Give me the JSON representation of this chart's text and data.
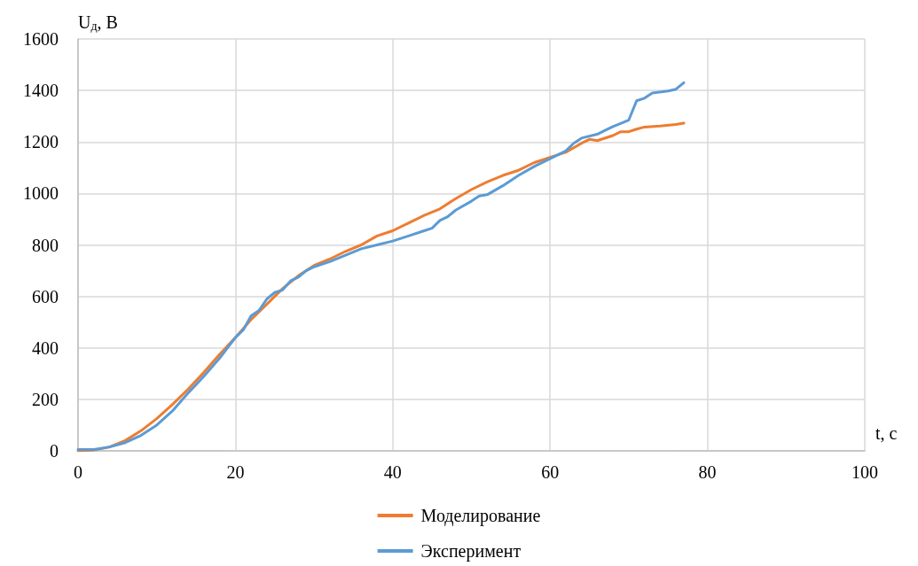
{
  "chart_data": {
    "type": "line",
    "xlabel": "t, с",
    "ylabel": "U$_{д}$, В",
    "x": [
      0,
      2,
      4,
      6,
      8,
      10,
      12,
      14,
      16,
      18,
      20,
      22,
      24,
      26,
      28,
      30,
      32,
      34,
      36,
      38,
      40,
      42,
      44,
      46,
      48,
      50,
      52,
      54,
      56,
      58,
      60,
      62,
      64,
      65,
      66,
      68,
      69,
      70,
      71,
      72,
      74,
      76,
      77
    ],
    "series": [
      {
        "name": "Моделирование",
        "color": "#ed7d31",
        "values": [
          0,
          3,
          15,
          40,
          78,
          125,
          180,
          240,
          305,
          375,
          440,
          510,
          570,
          630,
          680,
          720,
          745,
          775,
          800,
          835,
          855,
          885,
          915,
          940,
          980,
          1015,
          1045,
          1070,
          1090,
          1120,
          1140,
          1160,
          1195,
          1210,
          1205,
          1225,
          1240,
          1240,
          1250,
          1258,
          1262,
          1268,
          1273
        ]
      },
      {
        "name": "Эксперимент",
        "color": "#5b9bd5",
        "x": [
          0,
          2,
          4,
          6,
          8,
          10,
          12,
          14,
          16,
          18,
          20,
          21,
          22,
          23,
          24,
          25,
          26,
          27,
          28,
          29,
          30,
          32,
          34,
          36,
          38,
          40,
          42,
          44,
          45,
          46,
          47,
          48,
          50,
          51,
          52,
          54,
          56,
          58,
          60,
          62,
          63,
          64,
          66,
          67,
          68,
          70,
          71,
          72,
          73,
          75,
          76,
          77
        ],
        "values": [
          5,
          5,
          15,
          32,
          60,
          100,
          155,
          225,
          290,
          360,
          440,
          470,
          525,
          545,
          590,
          615,
          625,
          660,
          675,
          700,
          715,
          735,
          760,
          785,
          800,
          815,
          835,
          855,
          865,
          895,
          910,
          935,
          970,
          990,
          995,
          1030,
          1070,
          1105,
          1135,
          1165,
          1195,
          1215,
          1230,
          1245,
          1260,
          1285,
          1360,
          1370,
          1390,
          1398,
          1405,
          1430
        ]
      }
    ],
    "xlim": [
      0,
      100
    ],
    "xticks": [
      0,
      20,
      40,
      60,
      80,
      100
    ],
    "ylim": [
      0,
      1600
    ],
    "yticks": [
      0,
      200,
      400,
      600,
      800,
      1000,
      1200,
      1400,
      1600
    ],
    "grid": true,
    "legend": "bottom",
    "marker": "none",
    "line_style": "solid"
  }
}
